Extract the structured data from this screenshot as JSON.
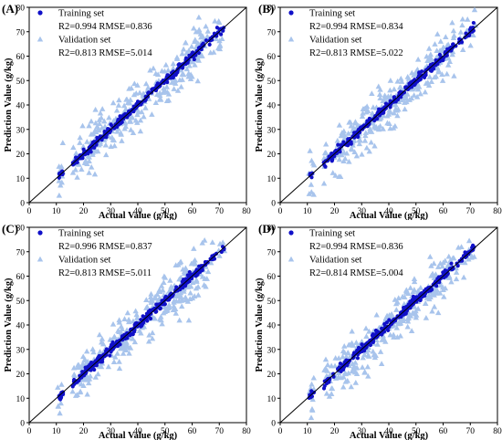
{
  "chart_data": [
    {
      "panel_label": "(A)",
      "type": "scatter",
      "xlabel": "Actual Value (g/kg)",
      "ylabel": "Prediction Value (g/kg)",
      "xlim": [
        0,
        80
      ],
      "ylim": [
        0,
        80
      ],
      "xticks": [
        0,
        10,
        20,
        30,
        40,
        50,
        60,
        70,
        80
      ],
      "yticks": [
        0,
        10,
        20,
        30,
        40,
        50,
        60,
        70,
        80
      ],
      "reference_line": "y = x",
      "legend_position": "top-left",
      "series": [
        {
          "name": "Training set",
          "marker": "circle",
          "color": "#1010c8",
          "stats": "R2=0.994 RMSE=0.836",
          "r2": 0.994,
          "rmse": 0.836
        },
        {
          "name": "Validation set",
          "marker": "triangle",
          "color": "#a8c4ec",
          "stats": "R2=0.813 RMSE=5.014",
          "r2": 0.813,
          "rmse": 5.014
        }
      ]
    },
    {
      "panel_label": "(B)",
      "type": "scatter",
      "xlabel": "Actual Value (g/kg)",
      "ylabel": "Prediction Value (g/kg)",
      "xlim": [
        0,
        80
      ],
      "ylim": [
        0,
        80
      ],
      "xticks": [
        0,
        10,
        20,
        30,
        40,
        50,
        60,
        70,
        80
      ],
      "yticks": [
        0,
        10,
        20,
        30,
        40,
        50,
        60,
        70,
        80
      ],
      "reference_line": "y = x",
      "legend_position": "top-left",
      "series": [
        {
          "name": "Training set",
          "marker": "circle",
          "color": "#1010c8",
          "stats": "R2=0.994 RMSE=0.834",
          "r2": 0.994,
          "rmse": 0.834
        },
        {
          "name": "Validation set",
          "marker": "triangle",
          "color": "#a8c4ec",
          "stats": "R2=0.813 RMSE=5.022",
          "r2": 0.813,
          "rmse": 5.022
        }
      ]
    },
    {
      "panel_label": "(C)",
      "type": "scatter",
      "xlabel": "Actual Value (g/kg)",
      "ylabel": "Prediction Value (g/kg)",
      "xlim": [
        0,
        80
      ],
      "ylim": [
        0,
        80
      ],
      "xticks": [
        0,
        10,
        20,
        30,
        40,
        50,
        60,
        70,
        80
      ],
      "yticks": [
        0,
        10,
        20,
        30,
        40,
        50,
        60,
        70,
        80
      ],
      "reference_line": "y = x",
      "legend_position": "top-left",
      "series": [
        {
          "name": "Training set",
          "marker": "circle",
          "color": "#1010c8",
          "stats": "R2=0.996 RMSE=0.837",
          "r2": 0.996,
          "rmse": 0.837
        },
        {
          "name": "Validation set",
          "marker": "triangle",
          "color": "#a8c4ec",
          "stats": "R2=0.813 RMSE=5.011",
          "r2": 0.813,
          "rmse": 5.011
        }
      ]
    },
    {
      "panel_label": "(D)",
      "type": "scatter",
      "xlabel": "Actual Value (g/kg)",
      "ylabel": "Prediction Value (g/kg)",
      "xlim": [
        0,
        80
      ],
      "ylim": [
        0,
        80
      ],
      "xticks": [
        0,
        10,
        20,
        30,
        40,
        50,
        60,
        70,
        80
      ],
      "yticks": [
        0,
        10,
        20,
        30,
        40,
        50,
        60,
        70,
        80
      ],
      "reference_line": "y = x",
      "legend_position": "top-left",
      "series": [
        {
          "name": "Training set",
          "marker": "circle",
          "color": "#1010c8",
          "stats": "R2=0.994 RMSE=0.836",
          "r2": 0.994,
          "rmse": 0.836
        },
        {
          "name": "Validation set",
          "marker": "triangle",
          "color": "#a8c4ec",
          "stats": "R2=0.814 RMSE=5.004",
          "r2": 0.814,
          "rmse": 5.004
        }
      ]
    }
  ]
}
